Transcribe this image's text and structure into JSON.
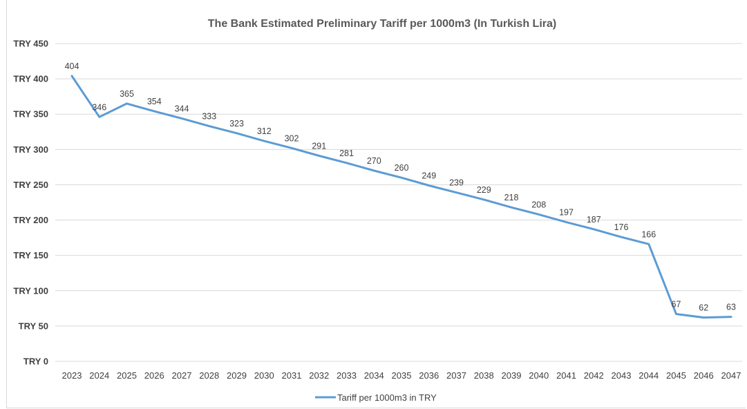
{
  "chart_data": {
    "type": "line",
    "title": "The Bank Estimated Preliminary Tariff per 1000m3 (In Turkish Lira)",
    "xlabel": "",
    "ylabel": "",
    "categories": [
      "2023",
      "2024",
      "2025",
      "2026",
      "2027",
      "2028",
      "2029",
      "2030",
      "2031",
      "2032",
      "2033",
      "2034",
      "2035",
      "2036",
      "2037",
      "2038",
      "2039",
      "2040",
      "2041",
      "2042",
      "2043",
      "2044",
      "2045",
      "2046",
      "2047"
    ],
    "ylim": [
      0,
      450
    ],
    "yticks": [
      0,
      50,
      100,
      150,
      200,
      250,
      300,
      350,
      400,
      450
    ],
    "ytick_labels": [
      "TRY 0",
      "TRY 50",
      "TRY 100",
      "TRY 150",
      "TRY 200",
      "TRY 250",
      "TRY 300",
      "TRY 350",
      "TRY 400",
      "TRY 450"
    ],
    "grid": true,
    "legend_position": "bottom",
    "series": [
      {
        "name": "Tariff per 1000m3 in TRY",
        "color": "#5b9bd5",
        "values": [
          404,
          346,
          365,
          354,
          344,
          333,
          323,
          312,
          302,
          291,
          281,
          270,
          260,
          249,
          239,
          229,
          218,
          208,
          197,
          187,
          176,
          166,
          67,
          62,
          63
        ],
        "data_labels": [
          "404",
          "346",
          "365",
          "354",
          "344",
          "333",
          "323",
          "312",
          "302",
          "291",
          "281",
          "270",
          "260",
          "249",
          "239",
          "229",
          "218",
          "208",
          "197",
          "187",
          "176",
          "166",
          "67",
          "62",
          "63"
        ]
      }
    ]
  }
}
